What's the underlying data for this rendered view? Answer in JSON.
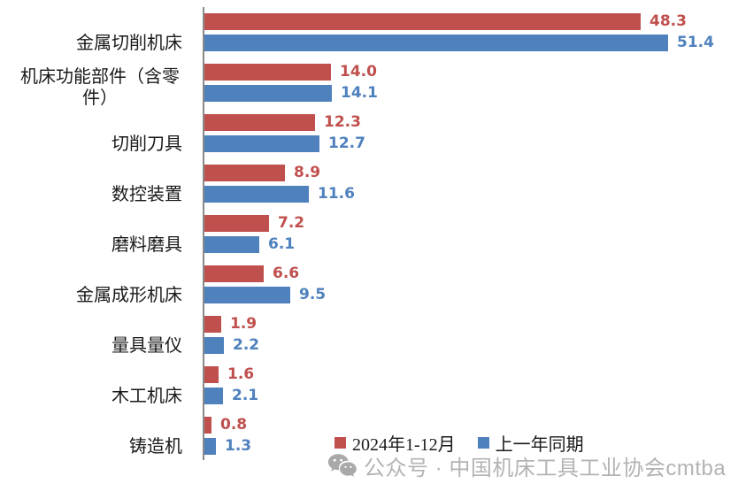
{
  "chart_data": {
    "type": "bar",
    "orientation": "horizontal",
    "categories": [
      "金属切削机床",
      "机床功能部件（含零件）",
      "切削刀具",
      "数控装置",
      "磨料磨具",
      "金属成形机床",
      "量具量仪",
      "木工机床",
      "铸造机"
    ],
    "series": [
      {
        "name": "2024年1-12月",
        "color": "#c0504d",
        "values": [
          48.3,
          14.0,
          12.3,
          8.9,
          7.2,
          6.6,
          1.9,
          1.6,
          0.8
        ]
      },
      {
        "name": "上一年同期",
        "color": "#4f81bd",
        "values": [
          51.4,
          14.1,
          12.7,
          11.6,
          6.1,
          9.5,
          2.2,
          2.1,
          1.3
        ]
      }
    ],
    "xlim": [
      0,
      55
    ],
    "grid": false,
    "legend_position": "bottom",
    "data_labels": true,
    "value_decimals": 1
  },
  "colors": {
    "series_2024": "#c0504d",
    "series_prev": "#4f81bd",
    "axis_line": "#898989",
    "watermark": "#b3b3b3"
  },
  "watermark": {
    "icon": "wechat-icon",
    "text": "公众号 · 中国机床工具工业协会cmtba"
  }
}
